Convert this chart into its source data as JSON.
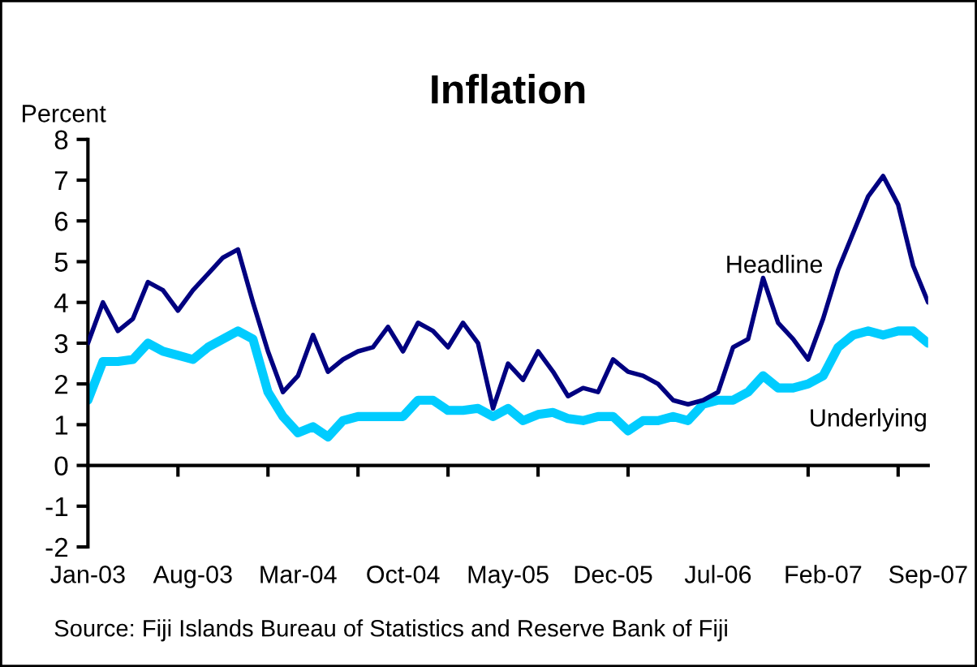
{
  "chart_data": {
    "type": "line",
    "title": "Inflation",
    "ylabel": "Percent",
    "categories": [
      "Jan-03",
      null,
      null,
      null,
      null,
      null,
      null,
      "Aug-03",
      null,
      null,
      null,
      null,
      null,
      null,
      "Mar-04",
      null,
      null,
      null,
      null,
      null,
      null,
      "Oct-04",
      null,
      null,
      null,
      null,
      null,
      null,
      "May-05",
      null,
      null,
      null,
      null,
      null,
      null,
      "Dec-05",
      null,
      null,
      null,
      null,
      null,
      null,
      "Jul-06",
      null,
      null,
      null,
      null,
      null,
      null,
      "Feb-07",
      null,
      null,
      null,
      null,
      null,
      null,
      "Sep-07"
    ],
    "series": [
      {
        "name": "Headline",
        "color": "#000080",
        "values": [
          3.0,
          4.0,
          3.3,
          3.6,
          4.5,
          4.3,
          3.8,
          4.3,
          4.7,
          5.1,
          5.3,
          4.0,
          2.8,
          1.8,
          2.2,
          3.2,
          2.3,
          2.6,
          2.8,
          2.9,
          3.4,
          2.8,
          3.5,
          3.3,
          2.9,
          3.5,
          3.0,
          1.4,
          2.5,
          2.1,
          2.8,
          2.3,
          1.7,
          1.9,
          1.8,
          2.6,
          2.3,
          2.2,
          2.0,
          1.6,
          1.5,
          1.6,
          1.8,
          2.9,
          3.1,
          4.6,
          3.5,
          3.1,
          2.6,
          3.6,
          4.8,
          5.7,
          6.6,
          7.1,
          6.4,
          4.9,
          4.0
        ]
      },
      {
        "name": "Underlying",
        "color": "#00ccff",
        "values": [
          1.6,
          2.55,
          2.55,
          2.6,
          3.0,
          2.8,
          2.7,
          2.6,
          2.9,
          3.1,
          3.3,
          3.1,
          1.8,
          1.2,
          0.8,
          0.95,
          0.7,
          1.1,
          1.2,
          1.2,
          1.2,
          1.2,
          1.6,
          1.6,
          1.35,
          1.35,
          1.4,
          1.2,
          1.4,
          1.1,
          1.25,
          1.3,
          1.15,
          1.1,
          1.2,
          1.2,
          0.85,
          1.1,
          1.1,
          1.2,
          1.1,
          1.5,
          1.6,
          1.6,
          1.8,
          2.2,
          1.9,
          1.9,
          2.0,
          2.2,
          2.9,
          3.2,
          3.3,
          3.2,
          3.3,
          3.3,
          3.0
        ]
      }
    ],
    "ylim": [
      -2,
      8
    ],
    "yticks": [
      -2,
      -1,
      0,
      1,
      2,
      3,
      4,
      5,
      6,
      7,
      8
    ],
    "annotations": [
      "Source: Fiji Islands Bureau of Statistics and Reserve Bank of Fiji"
    ]
  }
}
